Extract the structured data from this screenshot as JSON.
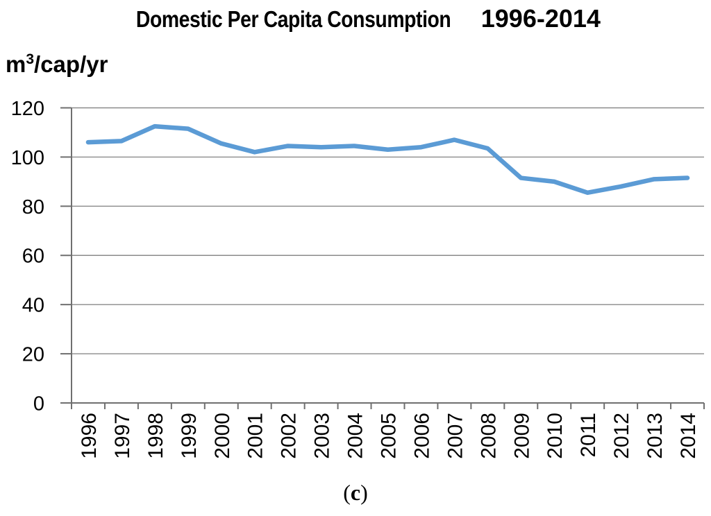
{
  "chart_data": {
    "type": "line",
    "title_parts": {
      "main": "Domestic Per Capita Consumption",
      "years": "1996-2014"
    },
    "title_full": "Domestic Per Capita Consumption 1996-2014",
    "ylabel_parts": {
      "base": "m",
      "exponent": "3",
      "rest": "/cap/yr"
    },
    "categories": [
      "1996",
      "1997",
      "1998",
      "1999",
      "2000",
      "2001",
      "2002",
      "2003",
      "2004",
      "2005",
      "2006",
      "2007",
      "2008",
      "2009",
      "2010",
      "2011",
      "2012",
      "2013",
      "2014"
    ],
    "values": [
      106,
      106.5,
      112.5,
      111.5,
      105.5,
      102,
      104.5,
      104,
      104.5,
      103,
      104,
      107,
      103.5,
      91.5,
      90,
      85.5,
      88,
      91,
      91.5
    ],
    "ylim": [
      0,
      120
    ],
    "yticks": [
      0,
      20,
      40,
      60,
      80,
      100,
      120
    ],
    "grid": true,
    "legend": "none",
    "line_color": "#5b9bd5",
    "axis_color": "#6f6f6f",
    "grid_color": "#8a8a8a",
    "tick_label_color": "#000000"
  },
  "caption": {
    "open": "(",
    "letter": "c",
    "close": ")"
  }
}
